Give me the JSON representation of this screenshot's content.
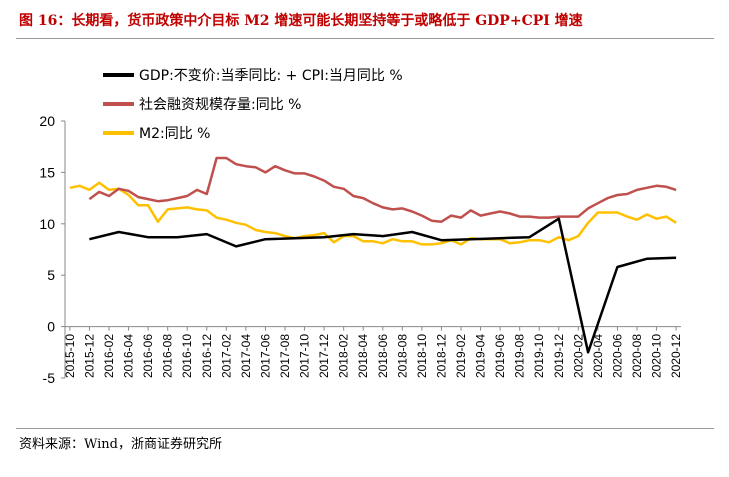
{
  "title": "图 16：长期看，货币政策中介目标 M2 增速可能长期坚持等于或略低于 GDP+CPI 增速",
  "source": "资料来源：Wind，浙商证券研究所",
  "chart_data": {
    "type": "line",
    "x": [
      "2015-10",
      "2015-11",
      "2015-12",
      "2016-01",
      "2016-02",
      "2016-03",
      "2016-04",
      "2016-05",
      "2016-06",
      "2016-07",
      "2016-08",
      "2016-09",
      "2016-10",
      "2016-11",
      "2016-12",
      "2017-01",
      "2017-02",
      "2017-03",
      "2017-04",
      "2017-05",
      "2017-06",
      "2017-07",
      "2017-08",
      "2017-09",
      "2017-10",
      "2017-11",
      "2017-12",
      "2018-01",
      "2018-02",
      "2018-03",
      "2018-04",
      "2018-05",
      "2018-06",
      "2018-07",
      "2018-08",
      "2018-09",
      "2018-10",
      "2018-11",
      "2018-12",
      "2019-01",
      "2019-02",
      "2019-03",
      "2019-04",
      "2019-05",
      "2019-06",
      "2019-07",
      "2019-08",
      "2019-09",
      "2019-10",
      "2019-11",
      "2019-12",
      "2020-01",
      "2020-02",
      "2020-03",
      "2020-04",
      "2020-05",
      "2020-06",
      "2020-07",
      "2020-08",
      "2020-09",
      "2020-10",
      "2020-11",
      "2020-12"
    ],
    "tick_labels": [
      "2015-10",
      "2015-12",
      "2016-02",
      "2016-04",
      "2016-06",
      "2016-08",
      "2016-10",
      "2016-12",
      "2017-02",
      "2017-04",
      "2017-06",
      "2017-08",
      "2017-10",
      "2017-12",
      "2018-02",
      "2018-04",
      "2018-06",
      "2018-08",
      "2018-10",
      "2018-12",
      "2019-02",
      "2019-04",
      "2019-06",
      "2019-08",
      "2019-10",
      "2019-12",
      "2020-02",
      "2020-04",
      "2020-06",
      "2020-08",
      "2020-10",
      "2020-12"
    ],
    "ylim": [
      -5,
      20
    ],
    "yticks": [
      -5,
      0,
      5,
      10,
      15,
      20
    ],
    "legend_position": "top-left",
    "series": [
      {
        "name": "GDP:不变价:当季同比: + CPI:当月同比 %",
        "color": "#000000",
        "width": 2.5,
        "values": [
          null,
          null,
          8.5,
          null,
          null,
          9.2,
          null,
          null,
          8.7,
          null,
          null,
          8.7,
          null,
          null,
          9.0,
          null,
          null,
          7.8,
          null,
          null,
          8.5,
          null,
          null,
          8.6,
          null,
          null,
          8.7,
          null,
          null,
          9.0,
          null,
          null,
          8.8,
          null,
          null,
          9.2,
          null,
          null,
          8.4,
          null,
          null,
          8.5,
          null,
          null,
          8.6,
          null,
          null,
          8.7,
          null,
          null,
          10.5,
          null,
          null,
          -2.5,
          null,
          null,
          5.8,
          null,
          null,
          6.6,
          null,
          null,
          6.7
        ]
      },
      {
        "name": "社会融资规模存量:同比 %",
        "color": "#c0504d",
        "width": 2.5,
        "values": [
          null,
          null,
          12.4,
          13.1,
          12.7,
          13.4,
          13.2,
          12.6,
          12.4,
          12.2,
          12.3,
          12.5,
          12.7,
          13.3,
          12.9,
          16.4,
          16.4,
          15.8,
          15.6,
          15.5,
          15.0,
          15.6,
          15.2,
          14.9,
          14.9,
          14.6,
          14.2,
          13.6,
          13.4,
          12.7,
          12.5,
          12.0,
          11.6,
          11.4,
          11.5,
          11.2,
          10.8,
          10.3,
          10.2,
          10.8,
          10.6,
          11.3,
          10.8,
          11.0,
          11.2,
          11.0,
          10.7,
          10.7,
          10.6,
          10.6,
          10.7,
          10.7,
          10.7,
          11.5,
          12.0,
          12.5,
          12.8,
          12.9,
          13.3,
          13.5,
          13.7,
          13.6,
          13.3
        ]
      },
      {
        "name": "M2:同比 %",
        "color": "#ffc000",
        "width": 2.5,
        "values": [
          13.5,
          13.7,
          13.3,
          14.0,
          13.3,
          13.4,
          12.8,
          11.8,
          11.8,
          10.2,
          11.4,
          11.5,
          11.6,
          11.4,
          11.3,
          10.6,
          10.4,
          10.1,
          9.9,
          9.4,
          9.2,
          9.1,
          8.8,
          8.6,
          8.8,
          8.9,
          9.1,
          8.2,
          8.8,
          8.8,
          8.3,
          8.3,
          8.1,
          8.5,
          8.3,
          8.3,
          8.0,
          8.0,
          8.1,
          8.4,
          8.0,
          8.6,
          8.5,
          8.5,
          8.5,
          8.1,
          8.2,
          8.4,
          8.4,
          8.2,
          8.7,
          8.4,
          8.8,
          10.1,
          11.1,
          11.1,
          11.1,
          10.7,
          10.4,
          10.9,
          10.5,
          10.7,
          10.1
        ]
      }
    ]
  }
}
